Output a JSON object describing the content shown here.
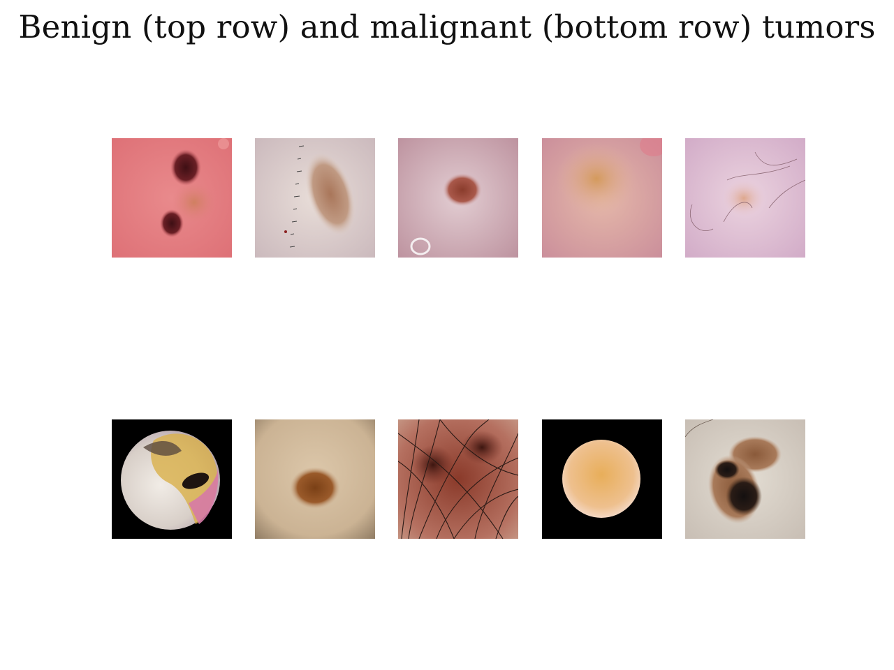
{
  "figure": {
    "title": "Benign (top row) and malignant (bottom row) tumors"
  },
  "rows": [
    {
      "row": "benign",
      "images": [
        {
          "subject": "pink skin with dark brown lesions"
        },
        {
          "subject": "pale skin with light brown lesion and ruler marks"
        },
        {
          "subject": "pink skin with small reddish-brown lesion"
        },
        {
          "subject": "pink-orange skin with diffuse tan lesion"
        },
        {
          "subject": "pale pink skin with faint lesion and hairs"
        }
      ]
    },
    {
      "row": "malignant",
      "images": [
        {
          "subject": "circular dermoscopy view with multicolored crusted lesion"
        },
        {
          "subject": "beige skin with brown lesion"
        },
        {
          "subject": "dark brown lesion with many hairs"
        },
        {
          "subject": "circular dermoscopy view with orange lesion"
        },
        {
          "subject": "skin with dark brown and black lesion"
        }
      ]
    }
  ]
}
